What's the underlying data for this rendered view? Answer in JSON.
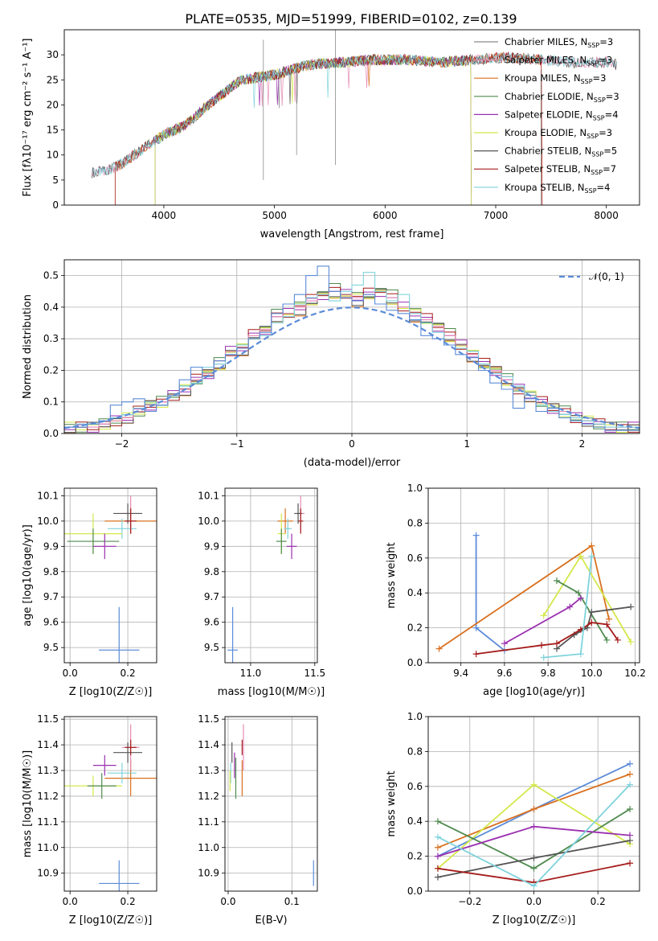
{
  "figure": {
    "title": "PLATE=0535, MJD=51999, FIBERID=0102, z=0.139"
  },
  "legend": {
    "entries": [
      {
        "label": "Chabrier MILES, N",
        "sub": "SSP",
        "tail": "=3",
        "color": "#8a8a8a"
      },
      {
        "label": "Salpeter MILES, N",
        "sub": "SSP",
        "tail": "=3",
        "color": "#e48ab3"
      },
      {
        "label": "Kroupa MILES, N",
        "sub": "SSP",
        "tail": "=3",
        "color": "#d9701f"
      },
      {
        "label": "Chabrier ELODIE, N",
        "sub": "SSP",
        "tail": "=3",
        "color": "#4f8a4f"
      },
      {
        "label": "Salpeter ELODIE, N",
        "sub": "SSP",
        "tail": "=4",
        "color": "#9b30b0"
      },
      {
        "label": "Kroupa ELODIE, N",
        "sub": "SSP",
        "tail": "=3",
        "color": "#d4e84a"
      },
      {
        "label": "Chabrier STELIB, N",
        "sub": "SSP",
        "tail": "=5",
        "color": "#555555"
      },
      {
        "label": "Salpeter STELIB, N",
        "sub": "SSP",
        "tail": "=7",
        "color": "#a51b1b"
      },
      {
        "label": "Kroupa STELIB, N",
        "sub": "SSP",
        "tail": "=4",
        "color": "#7fd3dc"
      }
    ],
    "normal_label": "𝒩(0, 1)"
  },
  "chart_data": [
    {
      "id": "spectrum",
      "type": "line",
      "xlabel": "wavelength [Angstrom, rest frame]",
      "ylabel": "Flux [fλ10⁻¹⁷ erg cm⁻² s⁻¹ A⁻¹]",
      "xlim": [
        3100,
        8300
      ],
      "ylim": [
        0,
        35
      ],
      "xticks": [
        4000,
        5000,
        6000,
        7000,
        8000
      ],
      "yticks": [
        0,
        5,
        10,
        15,
        20,
        25,
        30
      ],
      "continuum_x": [
        3350,
        3500,
        3600,
        3800,
        4000,
        4200,
        4400,
        4700,
        5000,
        5300,
        5600,
        5900,
        6200,
        6500,
        6800,
        7100,
        7400,
        7700,
        8000,
        8100
      ],
      "continuum_y": [
        6.5,
        7,
        8,
        11,
        14,
        16,
        20,
        25,
        26,
        28,
        28.5,
        29,
        29,
        28.5,
        29,
        29.5,
        29,
        28.5,
        28.5,
        28
      ],
      "series_ranges": [
        [
          3350,
          8100
        ],
        [
          3350,
          8100
        ],
        [
          3560,
          7420
        ],
        [
          3920,
          6780
        ],
        [
          3920,
          6780
        ],
        [
          3920,
          6780
        ],
        [
          3350,
          8100
        ],
        [
          3560,
          7420
        ],
        [
          3350,
          8100
        ]
      ]
    },
    {
      "id": "residual_histogram",
      "type": "line",
      "xlabel": "(data-model)/error",
      "ylabel": "Normed distribution",
      "xlim": [
        -2.5,
        2.5
      ],
      "ylim": [
        0,
        0.55
      ],
      "xticks": [
        -2,
        -1,
        0,
        1,
        2
      ],
      "yticks": [
        0.0,
        0.1,
        0.2,
        0.3,
        0.4,
        0.5
      ],
      "bin_edges": [
        -2.5,
        -2.4,
        -2.3,
        -2.2,
        -2.1,
        -2.0,
        -1.9,
        -1.8,
        -1.7,
        -1.6,
        -1.5,
        -1.4,
        -1.3,
        -1.2,
        -1.1,
        -1.0,
        -0.9,
        -0.8,
        -0.7,
        -0.6,
        -0.5,
        -0.4,
        -0.3,
        -0.2,
        -0.1,
        0.0,
        0.1,
        0.2,
        0.3,
        0.4,
        0.5,
        0.6,
        0.7,
        0.8,
        0.9,
        1.0,
        1.1,
        1.2,
        1.3,
        1.4,
        1.5,
        1.6,
        1.7,
        1.8,
        1.9,
        2.0,
        2.1,
        2.2,
        2.3,
        2.4,
        2.5
      ],
      "series": [
        {
          "name": "Chabrier MILES",
          "values": [
            0.02,
            0.02,
            0.02,
            0.03,
            0.04,
            0.05,
            0.07,
            0.09,
            0.1,
            0.12,
            0.14,
            0.17,
            0.19,
            0.22,
            0.26,
            0.27,
            0.31,
            0.33,
            0.37,
            0.38,
            0.4,
            0.42,
            0.44,
            0.45,
            0.44,
            0.43,
            0.44,
            0.45,
            0.43,
            0.4,
            0.38,
            0.36,
            0.34,
            0.31,
            0.28,
            0.25,
            0.22,
            0.2,
            0.17,
            0.14,
            0.12,
            0.1,
            0.08,
            0.07,
            0.05,
            0.04,
            0.03,
            0.02,
            0.02,
            0.02
          ]
        },
        {
          "name": "Kroupa STELIB",
          "values": [
            0.02,
            0.03,
            0.03,
            0.04,
            0.05,
            0.06,
            0.08,
            0.1,
            0.09,
            0.12,
            0.15,
            0.16,
            0.21,
            0.22,
            0.25,
            0.28,
            0.3,
            0.31,
            0.35,
            0.37,
            0.41,
            0.43,
            0.44,
            0.42,
            0.45,
            0.47,
            0.51,
            0.45,
            0.42,
            0.44,
            0.38,
            0.35,
            0.32,
            0.28,
            0.27,
            0.26,
            0.22,
            0.19,
            0.18,
            0.15,
            0.12,
            0.09,
            0.07,
            0.06,
            0.05,
            0.04,
            0.03,
            0.02,
            0.02,
            0.02
          ]
        },
        {
          "name": "Blue",
          "values": [
            0.02,
            0.02,
            0.03,
            0.04,
            0.09,
            0.1,
            0.11,
            0.07,
            0.09,
            0.12,
            0.17,
            0.21,
            0.18,
            0.23,
            0.25,
            0.27,
            0.3,
            0.32,
            0.38,
            0.41,
            0.44,
            0.5,
            0.53,
            0.45,
            0.43,
            0.42,
            0.44,
            0.41,
            0.39,
            0.38,
            0.36,
            0.31,
            0.3,
            0.28,
            0.25,
            0.24,
            0.2,
            0.16,
            0.14,
            0.08,
            0.11,
            0.07,
            0.08,
            0.05,
            0.04,
            0.03,
            0.02,
            0.01,
            0.01,
            0.01
          ]
        }
      ],
      "normal_curve": {
        "mean": 0,
        "sigma": 1
      }
    },
    {
      "id": "age_vs_Z",
      "type": "scatter",
      "xlabel": "Z [log10(Z/Z☉)]",
      "ylabel": "age [log10(age/yr)]",
      "xlim": [
        -0.02,
        0.3
      ],
      "ylim": [
        9.44,
        10.13
      ],
      "xticks": [
        0.0,
        0.2
      ],
      "yticks": [
        9.5,
        9.6,
        9.7,
        9.8,
        9.9,
        10.0,
        10.1
      ],
      "points": [
        {
          "x": 0.21,
          "xerr": 0.09,
          "y": 10.0,
          "yerr": 0.05,
          "color": "#d9701f"
        },
        {
          "x": 0.21,
          "xerr": 0.03,
          "y": 10.03,
          "yerr": 0.07,
          "color": "#e48ab3"
        },
        {
          "x": 0.2,
          "xerr": 0.05,
          "y": 10.03,
          "yerr": 0.04,
          "color": "#555555"
        },
        {
          "x": 0.18,
          "xerr": 0.05,
          "y": 9.97,
          "yerr": 0.04,
          "color": "#7fd3dc"
        },
        {
          "x": 0.08,
          "xerr": 0.1,
          "y": 9.95,
          "yerr": 0.08,
          "color": "#d4e84a"
        },
        {
          "x": 0.08,
          "xerr": 0.09,
          "y": 9.92,
          "yerr": 0.05,
          "color": "#4f8a4f"
        },
        {
          "x": 0.12,
          "xerr": 0.04,
          "y": 9.9,
          "yerr": 0.05,
          "color": "#9b30b0"
        },
        {
          "x": 0.21,
          "xerr": 0.02,
          "y": 10.0,
          "yerr": 0.05,
          "color": "#a51b1b"
        },
        {
          "x": 0.17,
          "xerr": 0.07,
          "y": 9.49,
          "yerr": 0.17,
          "color": "#5b8bd8"
        }
      ]
    },
    {
      "id": "age_vs_mass",
      "type": "scatter",
      "xlabel": "mass [log10(M/M☉)]",
      "ylabel": "",
      "xlim": [
        10.8,
        11.52
      ],
      "ylim": [
        9.44,
        10.13
      ],
      "xticks": [
        11.0,
        11.5
      ],
      "yticks": [
        9.5,
        9.6,
        9.7,
        9.8,
        9.9,
        10.0,
        10.1
      ],
      "points": [
        {
          "x": 11.27,
          "xerr": 0.06,
          "y": 10.0,
          "yerr": 0.05,
          "color": "#d9701f"
        },
        {
          "x": 11.39,
          "xerr": 0.03,
          "y": 10.03,
          "yerr": 0.07,
          "color": "#e48ab3"
        },
        {
          "x": 11.37,
          "xerr": 0.03,
          "y": 10.03,
          "yerr": 0.04,
          "color": "#555555"
        },
        {
          "x": 11.29,
          "xerr": 0.03,
          "y": 9.97,
          "yerr": 0.04,
          "color": "#7fd3dc"
        },
        {
          "x": 11.24,
          "xerr": 0.03,
          "y": 9.95,
          "yerr": 0.08,
          "color": "#d4e84a"
        },
        {
          "x": 11.24,
          "xerr": 0.04,
          "y": 9.92,
          "yerr": 0.05,
          "color": "#4f8a4f"
        },
        {
          "x": 11.32,
          "xerr": 0.04,
          "y": 9.9,
          "yerr": 0.05,
          "color": "#9b30b0"
        },
        {
          "x": 11.39,
          "xerr": 0.02,
          "y": 10.0,
          "yerr": 0.05,
          "color": "#a51b1b"
        },
        {
          "x": 10.86,
          "xerr": 0.04,
          "y": 9.49,
          "yerr": 0.17,
          "color": "#5b8bd8"
        }
      ]
    },
    {
      "id": "weight_vs_age",
      "type": "line",
      "xlabel": "age [log10(age/yr)]",
      "ylabel": "mass weight",
      "xlim": [
        9.25,
        10.22
      ],
      "ylim": [
        0,
        1
      ],
      "xticks": [
        9.4,
        9.6,
        9.8,
        10.0,
        10.2
      ],
      "yticks": [
        0.0,
        0.2,
        0.4,
        0.6,
        0.8,
        1.0
      ],
      "series": [
        {
          "name": "Blue",
          "color": "#5b8bd8",
          "x": [
            9.47,
            9.47,
            9.6
          ],
          "y": [
            0.73,
            0.2,
            0.07
          ]
        },
        {
          "name": "Kroupa MILES",
          "color": "#d9701f",
          "x": [
            9.3,
            10.0,
            10.08
          ],
          "y": [
            0.08,
            0.67,
            0.25
          ]
        },
        {
          "name": "Kroupa ELODIE",
          "color": "#d4e84a",
          "x": [
            9.78,
            9.95,
            10.18
          ],
          "y": [
            0.27,
            0.61,
            0.12
          ]
        },
        {
          "name": "Chabrier ELODIE",
          "color": "#4f8a4f",
          "x": [
            9.84,
            9.94,
            10.07
          ],
          "y": [
            0.47,
            0.4,
            0.13
          ]
        },
        {
          "name": "Salpeter ELODIE",
          "color": "#9b30b0",
          "x": [
            9.6,
            9.9,
            9.95
          ],
          "y": [
            0.11,
            0.32,
            0.37
          ]
        },
        {
          "name": "Chabrier STELIB",
          "color": "#555555",
          "x": [
            9.84,
            9.92,
            9.98,
            10.0,
            10.18
          ],
          "y": [
            0.08,
            0.16,
            0.2,
            0.29,
            0.32
          ]
        },
        {
          "name": "Salpeter STELIB",
          "color": "#a51b1b",
          "x": [
            9.47,
            9.77,
            9.84,
            9.95,
            10.0,
            10.07,
            10.12
          ],
          "y": [
            0.05,
            0.1,
            0.11,
            0.19,
            0.23,
            0.22,
            0.13
          ]
        },
        {
          "name": "Kroupa STELIB",
          "color": "#7fd3dc",
          "x": [
            9.78,
            9.95,
            10.0
          ],
          "y": [
            0.03,
            0.05,
            0.61
          ]
        }
      ]
    },
    {
      "id": "mass_vs_Z",
      "type": "scatter",
      "xlabel": "Z [log10(Z/Z☉)]",
      "ylabel": "mass [log10(M/M☉)]",
      "xlim": [
        -0.02,
        0.3
      ],
      "ylim": [
        10.83,
        11.51
      ],
      "xticks": [
        0.0,
        0.2
      ],
      "yticks": [
        10.9,
        11.0,
        11.1,
        11.2,
        11.3,
        11.4,
        11.5
      ],
      "points": [
        {
          "x": 0.21,
          "xerr": 0.09,
          "y": 11.27,
          "yerr": 0.07,
          "color": "#d9701f"
        },
        {
          "x": 0.21,
          "xerr": 0.03,
          "y": 11.39,
          "yerr": 0.09,
          "color": "#e48ab3"
        },
        {
          "x": 0.2,
          "xerr": 0.05,
          "y": 11.37,
          "yerr": 0.04,
          "color": "#555555"
        },
        {
          "x": 0.18,
          "xerr": 0.05,
          "y": 11.29,
          "yerr": 0.04,
          "color": "#7fd3dc"
        },
        {
          "x": 0.08,
          "xerr": 0.1,
          "y": 11.24,
          "yerr": 0.04,
          "color": "#d4e84a"
        },
        {
          "x": 0.11,
          "xerr": 0.05,
          "y": 11.24,
          "yerr": 0.05,
          "color": "#4f8a4f"
        },
        {
          "x": 0.12,
          "xerr": 0.04,
          "y": 11.32,
          "yerr": 0.04,
          "color": "#9b30b0"
        },
        {
          "x": 0.21,
          "xerr": 0.02,
          "y": 11.39,
          "yerr": 0.03,
          "color": "#a51b1b"
        },
        {
          "x": 0.17,
          "xerr": 0.07,
          "y": 10.86,
          "yerr": 0.09,
          "color": "#5b8bd8"
        }
      ]
    },
    {
      "id": "mass_vs_ebv",
      "type": "scatter",
      "xlabel": "E(B-V)",
      "ylabel": "",
      "xlim": [
        -0.005,
        0.14
      ],
      "ylim": [
        10.83,
        11.51
      ],
      "xticks": [
        0.0,
        0.1
      ],
      "yticks": [
        10.9,
        11.0,
        11.1,
        11.2,
        11.3,
        11.4,
        11.5
      ],
      "points": [
        {
          "x": 0.022,
          "y": 11.27,
          "yerr": 0.07,
          "color": "#d9701f"
        },
        {
          "x": 0.024,
          "y": 11.39,
          "yerr": 0.09,
          "color": "#e48ab3"
        },
        {
          "x": 0.006,
          "y": 11.37,
          "yerr": 0.04,
          "color": "#555555"
        },
        {
          "x": 0.004,
          "y": 11.29,
          "yerr": 0.04,
          "color": "#7fd3dc"
        },
        {
          "x": 0.003,
          "y": 11.26,
          "yerr": 0.04,
          "color": "#d4e84a"
        },
        {
          "x": 0.012,
          "y": 11.27,
          "yerr": 0.08,
          "color": "#4f8a4f"
        },
        {
          "x": 0.01,
          "y": 11.32,
          "yerr": 0.05,
          "color": "#9b30b0"
        },
        {
          "x": 0.022,
          "y": 11.39,
          "yerr": 0.03,
          "color": "#a51b1b"
        },
        {
          "x": 0.134,
          "y": 10.9,
          "yerr": 0.05,
          "color": "#5b8bd8"
        }
      ]
    },
    {
      "id": "weight_vs_Z",
      "type": "line",
      "xlabel": "Z [log10(Z/Z☉)]",
      "ylabel": "mass weight",
      "xlim": [
        -0.33,
        0.33
      ],
      "ylim": [
        0,
        1
      ],
      "xticks": [
        -0.2,
        0.0,
        0.2
      ],
      "yticks": [
        0.0,
        0.2,
        0.4,
        0.6,
        0.8,
        1.0
      ],
      "series": [
        {
          "name": "Blue",
          "color": "#5b8bd8",
          "x": [
            -0.3,
            0.0,
            0.3
          ],
          "y": [
            0.2,
            0.47,
            0.73
          ]
        },
        {
          "name": "Kroupa MILES",
          "color": "#d9701f",
          "x": [
            -0.3,
            0.0,
            0.3
          ],
          "y": [
            0.25,
            0.47,
            0.67
          ]
        },
        {
          "name": "Kroupa ELODIE",
          "color": "#d4e84a",
          "x": [
            -0.3,
            0.0,
            0.3
          ],
          "y": [
            0.13,
            0.61,
            0.27
          ]
        },
        {
          "name": "Chabrier ELODIE",
          "color": "#4f8a4f",
          "x": [
            -0.3,
            0.0,
            0.3
          ],
          "y": [
            0.4,
            0.13,
            0.47
          ]
        },
        {
          "name": "Salpeter ELODIE",
          "color": "#9b30b0",
          "x": [
            -0.3,
            0.0,
            0.3
          ],
          "y": [
            0.2,
            0.37,
            0.32
          ]
        },
        {
          "name": "Chabrier STELIB",
          "color": "#555555",
          "x": [
            -0.3,
            0.0,
            0.3
          ],
          "y": [
            0.08,
            0.19,
            0.29
          ]
        },
        {
          "name": "Salpeter STELIB",
          "color": "#a51b1b",
          "x": [
            -0.3,
            0.0,
            0.3
          ],
          "y": [
            0.13,
            0.05,
            0.16
          ]
        },
        {
          "name": "Kroupa STELIB",
          "color": "#7fd3dc",
          "x": [
            -0.3,
            0.0,
            0.3
          ],
          "y": [
            0.31,
            0.03,
            0.61
          ]
        }
      ]
    }
  ]
}
